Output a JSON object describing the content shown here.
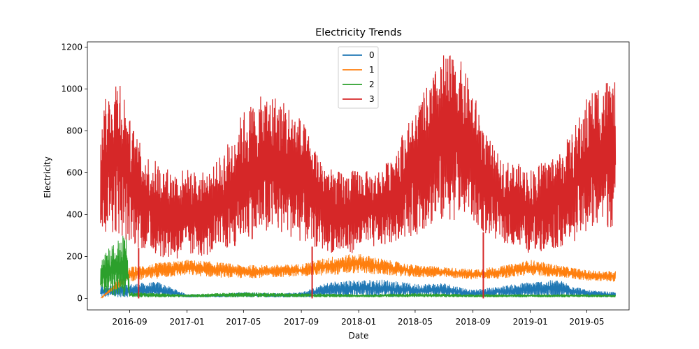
{
  "chart_data": {
    "type": "line",
    "title": "Electricity Trends",
    "xlabel": "Date",
    "ylabel": "Electricity",
    "x_range": [
      "2016-07-01",
      "2019-07-01"
    ],
    "xlim": [
      "2016-06-03",
      "2019-07-30"
    ],
    "ylim": [
      -55,
      1225
    ],
    "x_ticks": [
      "2016-09",
      "2017-01",
      "2017-05",
      "2017-09",
      "2018-01",
      "2018-05",
      "2018-09",
      "2019-01",
      "2019-05"
    ],
    "y_ticks": [
      0,
      200,
      400,
      600,
      800,
      1000,
      1200
    ],
    "legend_position": "top-center",
    "grid": false,
    "series": [
      {
        "name": "0",
        "color": "#1f77b4",
        "dates": [
          "2016-07-01",
          "2016-09-01",
          "2016-11-01",
          "2017-01-01",
          "2017-03-01",
          "2017-05-01",
          "2017-07-01",
          "2017-09-01",
          "2017-11-01",
          "2018-01-01",
          "2018-03-01",
          "2018-05-01",
          "2018-07-01",
          "2018-09-01",
          "2018-11-01",
          "2019-01-01",
          "2019-03-01",
          "2019-05-01",
          "2019-07-01"
        ],
        "low": [
          5,
          5,
          5,
          5,
          5,
          5,
          5,
          5,
          5,
          5,
          5,
          5,
          5,
          5,
          5,
          5,
          5,
          5,
          5
        ],
        "high": [
          60,
          70,
          80,
          20,
          20,
          30,
          25,
          30,
          80,
          90,
          90,
          70,
          75,
          40,
          60,
          80,
          90,
          40,
          30
        ]
      },
      {
        "name": "1",
        "color": "#ff7f0e",
        "dates": [
          "2016-07-01",
          "2016-09-01",
          "2016-11-01",
          "2017-01-01",
          "2017-03-01",
          "2017-05-01",
          "2017-07-01",
          "2017-09-01",
          "2017-11-01",
          "2018-01-01",
          "2018-03-01",
          "2018-05-01",
          "2018-07-01",
          "2018-09-01",
          "2018-11-01",
          "2019-01-01",
          "2019-03-01",
          "2019-05-01",
          "2019-07-01"
        ],
        "low": [
          0,
          80,
          95,
          110,
          100,
          95,
          100,
          105,
          110,
          120,
          110,
          100,
          100,
          90,
          95,
          110,
          100,
          85,
          80
        ],
        "high": [
          0,
          150,
          170,
          185,
          175,
          160,
          160,
          165,
          200,
          215,
          185,
          160,
          150,
          140,
          155,
          185,
          160,
          135,
          130
        ]
      },
      {
        "name": "2",
        "color": "#2ca02c",
        "dates": [
          "2016-07-01",
          "2016-08-01",
          "2016-08-25",
          "2016-09-01",
          "2016-11-01",
          "2017-01-01",
          "2017-05-01",
          "2017-09-01",
          "2018-01-01",
          "2018-05-01",
          "2018-09-01",
          "2019-01-01",
          "2019-05-01",
          "2019-07-01"
        ],
        "low": [
          5,
          5,
          5,
          5,
          5,
          5,
          5,
          5,
          5,
          5,
          5,
          5,
          5,
          5
        ],
        "high": [
          240,
          270,
          320,
          30,
          25,
          20,
          30,
          25,
          20,
          25,
          20,
          20,
          20,
          20
        ]
      },
      {
        "name": "3",
        "color": "#d62728",
        "dates": [
          "2016-07-01",
          "2016-07-20",
          "2016-08-10",
          "2016-09-01",
          "2016-10-01",
          "2016-11-01",
          "2016-12-01",
          "2017-01-01",
          "2017-02-01",
          "2017-03-01",
          "2017-04-01",
          "2017-05-01",
          "2017-06-01",
          "2017-07-01",
          "2017-08-01",
          "2017-09-01",
          "2017-10-01",
          "2017-11-01",
          "2017-12-01",
          "2018-01-01",
          "2018-02-01",
          "2018-03-01",
          "2018-04-01",
          "2018-05-01",
          "2018-06-01",
          "2018-07-01",
          "2018-08-01",
          "2018-09-01",
          "2018-10-01",
          "2018-11-01",
          "2018-12-01",
          "2019-01-01",
          "2019-02-01",
          "2019-03-01",
          "2019-04-01",
          "2019-05-01",
          "2019-06-01",
          "2019-07-01"
        ],
        "low": [
          260,
          320,
          300,
          260,
          230,
          200,
          180,
          190,
          200,
          210,
          230,
          270,
          290,
          300,
          300,
          270,
          240,
          220,
          200,
          230,
          240,
          250,
          280,
          300,
          340,
          360,
          380,
          360,
          300,
          270,
          240,
          210,
          230,
          240,
          270,
          300,
          330,
          340
        ],
        "high": [
          900,
          1000,
          1100,
          860,
          700,
          650,
          610,
          620,
          600,
          640,
          760,
          900,
          960,
          980,
          940,
          860,
          720,
          620,
          600,
          620,
          600,
          650,
          780,
          900,
          1040,
          1170,
          1160,
          1000,
          780,
          660,
          650,
          620,
          660,
          700,
          800,
          960,
          1060,
          1040
        ],
        "dropouts": [
          {
            "date": "2016-09-20",
            "value": 0
          },
          {
            "date": "2017-09-24",
            "value": 0
          },
          {
            "date": "2018-09-23",
            "value": 0
          }
        ]
      }
    ]
  }
}
